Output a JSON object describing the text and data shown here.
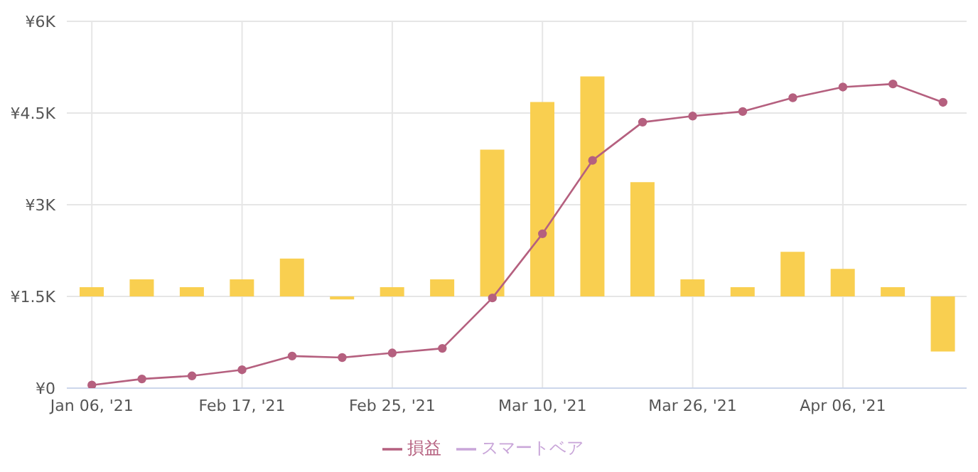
{
  "chart_data": {
    "type": "bar",
    "categories": [
      "Jan 06, '21",
      null,
      null,
      "Feb 17, '21",
      null,
      null,
      "Feb 25, '21",
      null,
      null,
      "Mar 10, '21",
      null,
      null,
      "Mar 26, '21",
      null,
      null,
      "Apr 06, '21",
      null,
      null
    ],
    "series": [
      {
        "color": "#f9cf50",
        "base": [
          1500,
          1500,
          1500,
          1500,
          1500,
          1500,
          1500,
          1500,
          1500,
          1500,
          1500,
          1500,
          1500,
          1500,
          1500,
          1500,
          1500,
          1500
        ],
        "values": [
          150,
          280,
          150,
          280,
          620,
          -50,
          150,
          280,
          2400,
          3180,
          3600,
          1870,
          280,
          150,
          730,
          450,
          150,
          -900
        ]
      },
      {
        "type": "line",
        "name": "損益",
        "color": "#b5607f",
        "marker": "circle",
        "values": [
          50,
          150,
          200,
          300,
          525,
          500,
          575,
          650,
          1475,
          2525,
          3725,
          4350,
          4450,
          4525,
          4750,
          4925,
          4975,
          4675
        ]
      },
      {
        "type": "line",
        "name": "スマートベア",
        "color": "#c9a6d9",
        "marker": "circle",
        "values": [
          null,
          null,
          null,
          null,
          null,
          null,
          null,
          null,
          null,
          null,
          null,
          null,
          null,
          null,
          null,
          null,
          null,
          null
        ]
      }
    ],
    "ylim": [
      0,
      6000
    ],
    "yticks": [
      {
        "value": 0,
        "label": "¥0"
      },
      {
        "value": 1500,
        "label": "¥1.5K"
      },
      {
        "value": 3000,
        "label": "¥3K"
      },
      {
        "value": 4500,
        "label": "¥4.5K"
      },
      {
        "value": 6000,
        "label": "¥6K"
      }
    ],
    "grid": true,
    "legend": "bottom"
  }
}
